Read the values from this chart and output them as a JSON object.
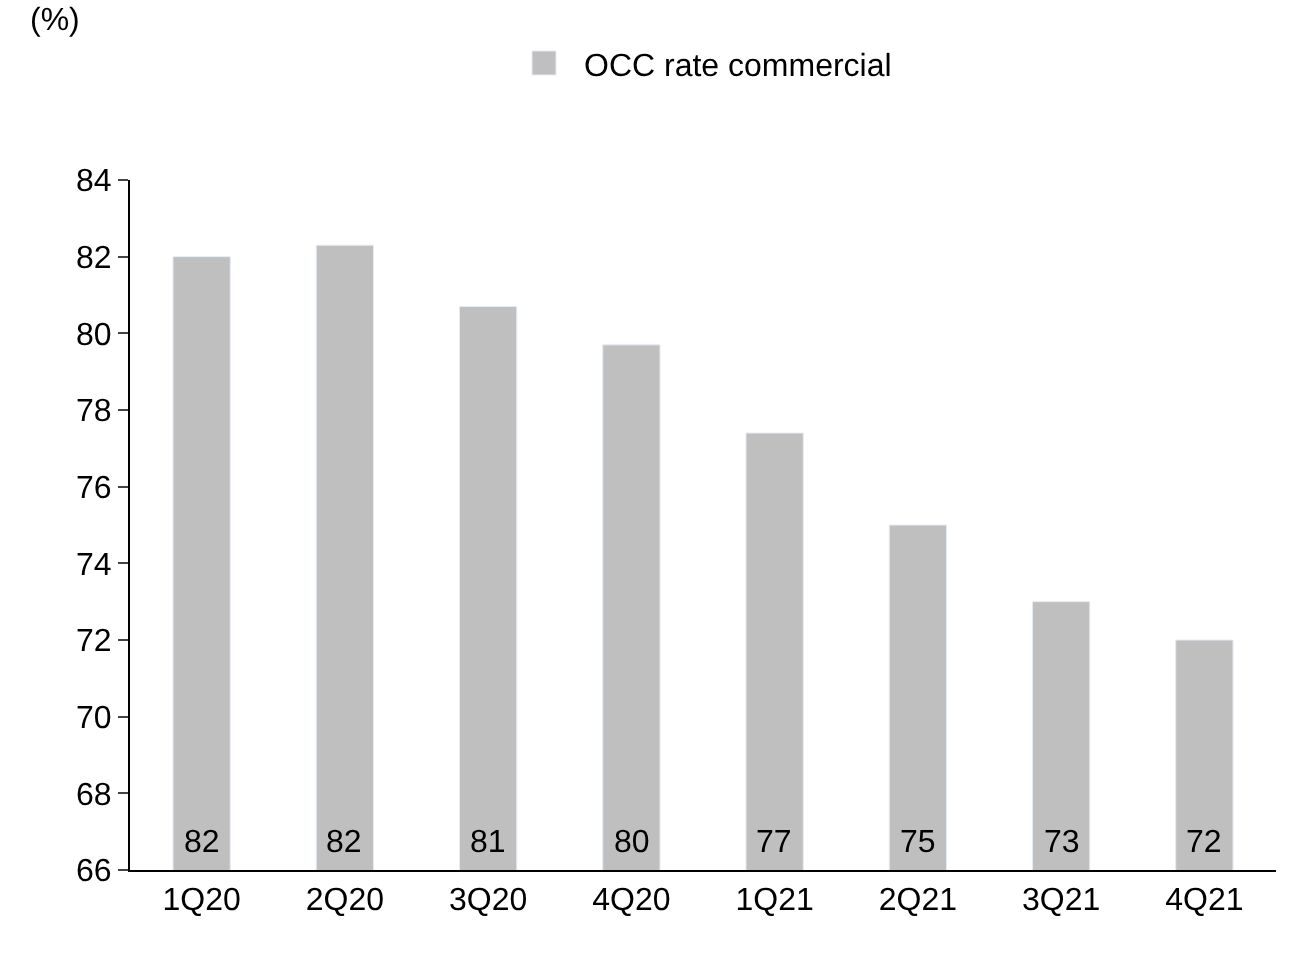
{
  "chart_data": {
    "type": "bar",
    "ylabel": "(%)",
    "categories": [
      "1Q20",
      "2Q20",
      "3Q20",
      "4Q20",
      "1Q21",
      "2Q21",
      "3Q21",
      "4Q21"
    ],
    "series": [
      {
        "name": "OCC rate commercial",
        "color": "#bfbfbf",
        "values": [
          82.0,
          82.3,
          80.7,
          79.7,
          77.4,
          75.0,
          73.0,
          72.0
        ],
        "value_labels": [
          "82",
          "82",
          "81",
          "80",
          "77",
          "75",
          "73",
          "72"
        ]
      }
    ],
    "ylim": [
      66,
      84
    ],
    "yticks": [
      66,
      68,
      70,
      72,
      74,
      76,
      78,
      80,
      82,
      84
    ],
    "legend": "top"
  }
}
